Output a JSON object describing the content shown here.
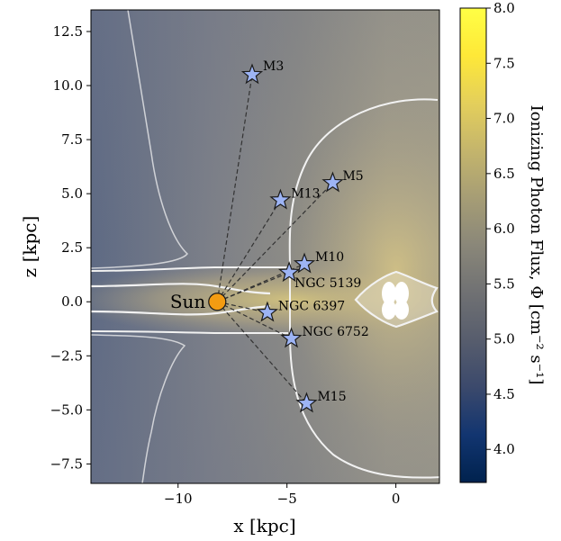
{
  "chart_data": {
    "type": "scatter",
    "title": "",
    "xlabel": "x [kpc]",
    "ylabel": "z [kpc]",
    "xlim": [
      -14,
      2
    ],
    "ylim": [
      -8.4,
      13.5
    ],
    "xticks": [
      -10,
      -5,
      0
    ],
    "xtick_labels": [
      "−10",
      "−5",
      "0"
    ],
    "yticks": [
      -7.5,
      -5,
      -2.5,
      0,
      2.5,
      5,
      7.5,
      10,
      12.5
    ],
    "ytick_labels": [
      "−7.5",
      "−5.0",
      "−2.5",
      "0.0",
      "2.5",
      "5.0",
      "7.5",
      "10.0",
      "12.5"
    ],
    "background": "2D map of ionizing photon flux (log scale) with white contour lines",
    "sun": {
      "label": "Sun",
      "x": -8.2,
      "z": 0.0,
      "color": "#f39c12"
    },
    "clusters": [
      {
        "name": "M3",
        "x": -6.6,
        "z": 10.5
      },
      {
        "name": "M5",
        "x": -2.9,
        "z": 5.5
      },
      {
        "name": "M13",
        "x": -5.3,
        "z": 4.7
      },
      {
        "name": "M10",
        "x": -4.2,
        "z": 1.75
      },
      {
        "name": "NGC 5139",
        "x": -4.9,
        "z": 1.35
      },
      {
        "name": "NGC 6397",
        "x": -5.9,
        "z": -0.5
      },
      {
        "name": "NGC 6752",
        "x": -4.8,
        "z": -1.7
      },
      {
        "name": "M15",
        "x": -4.1,
        "z": -4.7
      }
    ],
    "star_color": "#9db4f5",
    "colorbar": {
      "label": "Ionizing Photon Flux, Φ [cm⁻² s⁻¹]",
      "min": 3.7,
      "max": 8.0,
      "ticks": [
        4.0,
        4.5,
        5.0,
        5.5,
        6.0,
        6.5,
        7.0,
        7.5,
        8.0
      ],
      "tick_labels": [
        "4.0",
        "4.5",
        "5.0",
        "5.5",
        "6.0",
        "6.5",
        "7.0",
        "7.5",
        "8.0"
      ],
      "colormap": "cividis",
      "colors": [
        "#00224e",
        "#123570",
        "#3b496c",
        "#575d6d",
        "#707173",
        "#8a8779",
        "#a69d75",
        "#c4b56c",
        "#e4cf5b",
        "#fee838",
        "#ffff45"
      ]
    }
  }
}
